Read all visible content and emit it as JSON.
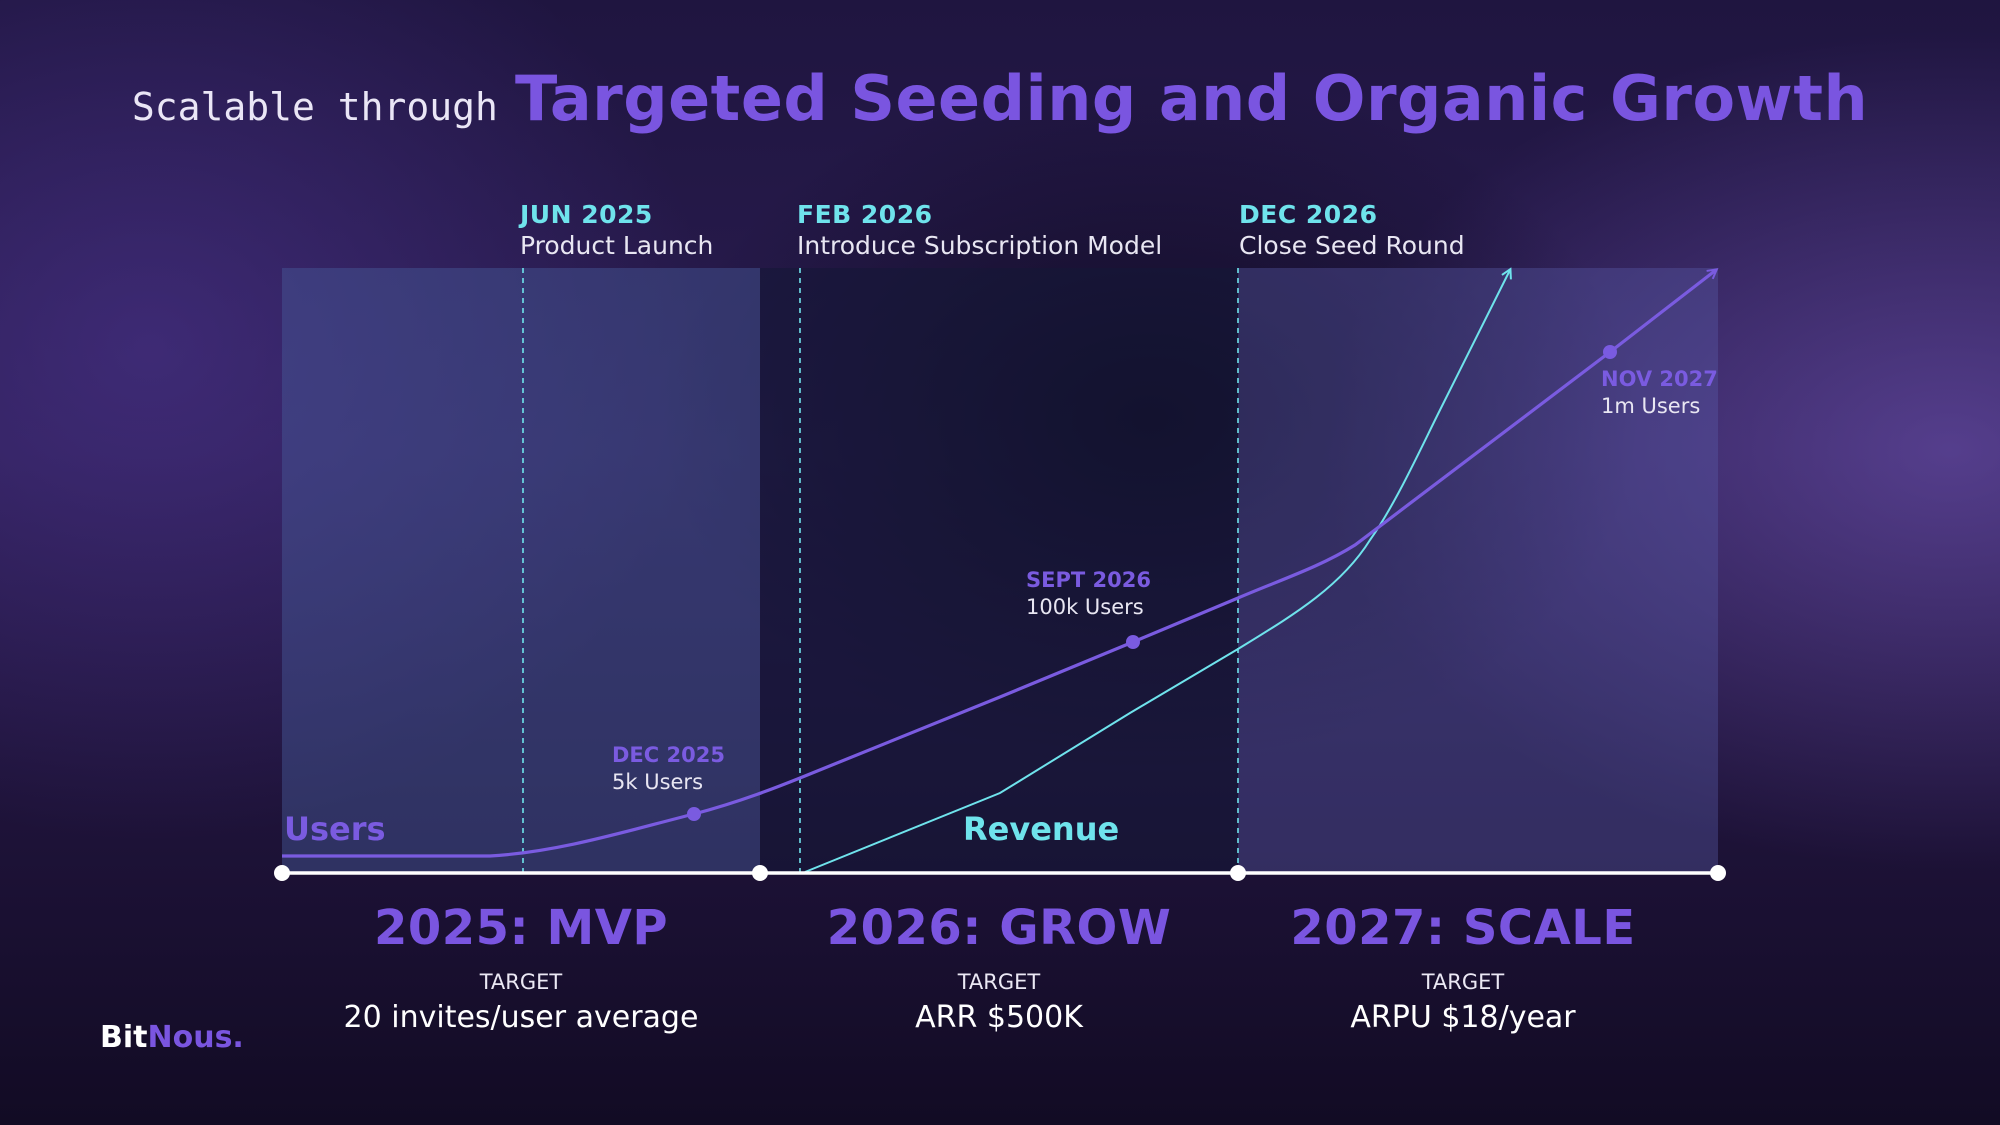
{
  "title": {
    "prefix": "Scalable through",
    "main": "Targeted Seeding and Organic Growth"
  },
  "milestones": [
    {
      "date": "JUN 2025",
      "label": "Product Launch"
    },
    {
      "date": "FEB 2026",
      "label": "Introduce Subscription Model"
    },
    {
      "date": "DEC 2026",
      "label": "Close Seed Round"
    }
  ],
  "series": {
    "users": {
      "name": "Users",
      "color": "#7a5be0"
    },
    "revenue": {
      "name": "Revenue",
      "color": "#6fe3ec"
    }
  },
  "points": [
    {
      "date": "DEC 2025",
      "value": "5k Users"
    },
    {
      "date": "SEPT 2026",
      "value": "100k Users"
    },
    {
      "date": "NOV 2027",
      "value": "1m Users"
    }
  ],
  "phases": [
    {
      "name": "2025: MVP",
      "target_label": "TARGET",
      "target": "20 invites/user average"
    },
    {
      "name": "2026: GROW",
      "target_label": "TARGET",
      "target": "ARR $500K"
    },
    {
      "name": "2027: SCALE",
      "target_label": "TARGET",
      "target": "ARPU $18/year"
    }
  ],
  "logo": {
    "part1": "Bit",
    "part2": "Nous."
  },
  "colors": {
    "accent": "#7a55e0",
    "cyan": "#6fe3ec",
    "background": "#24184a"
  }
}
